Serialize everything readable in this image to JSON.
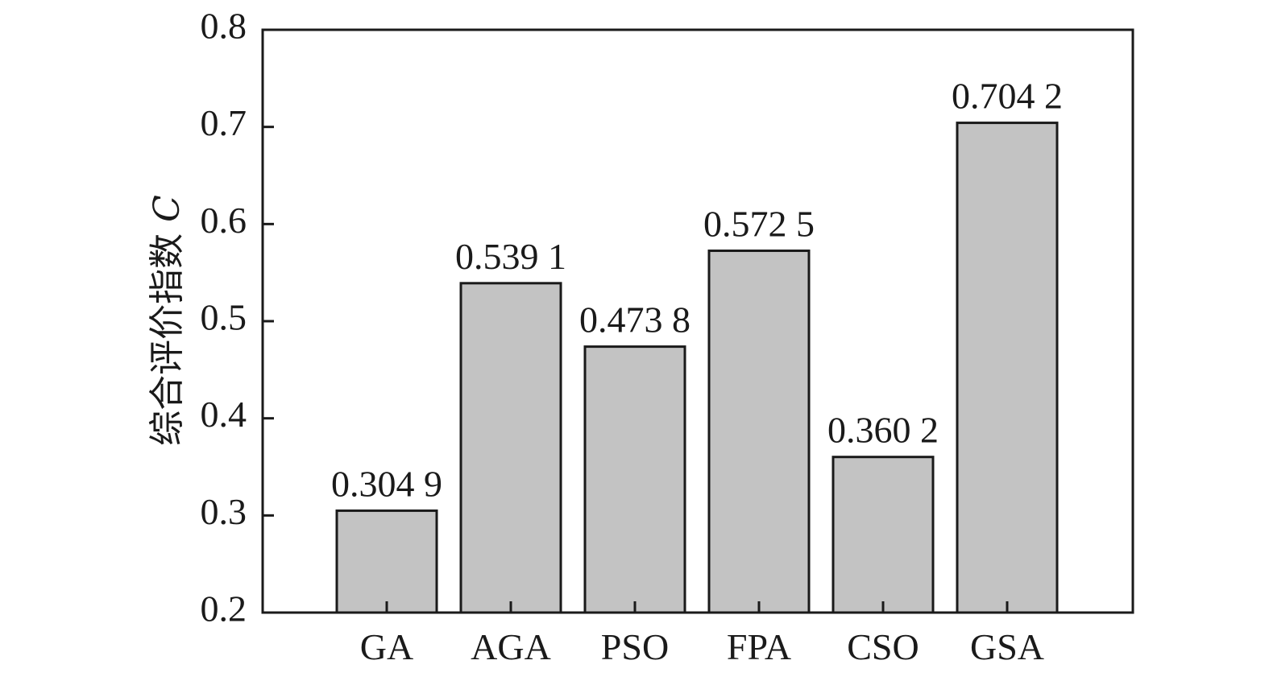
{
  "chart_data": {
    "type": "bar",
    "categories": [
      "GA",
      "AGA",
      "PSO",
      "FPA",
      "CSO",
      "GSA"
    ],
    "values": [
      0.3049,
      0.5391,
      0.4738,
      0.5725,
      0.3602,
      0.7042
    ],
    "data_labels": [
      "0.304 9",
      "0.539 1",
      "0.473 8",
      "0.572 5",
      "0.360 2",
      "0.704 2"
    ],
    "title": "",
    "xlabel": "",
    "ylabel": "综合评价指数",
    "ylabel_variable": "C",
    "ylim": [
      0.2,
      0.8
    ],
    "yticks": [
      0.2,
      0.3,
      0.4,
      0.5,
      0.6,
      0.7,
      0.8
    ],
    "ytick_labels": [
      "0.2",
      "0.3",
      "0.4",
      "0.5",
      "0.6",
      "0.7",
      "0.8"
    ],
    "grid": false,
    "legend": "none",
    "bar_color": "#c3c3c3",
    "edge_color": "#1a1a1a"
  }
}
